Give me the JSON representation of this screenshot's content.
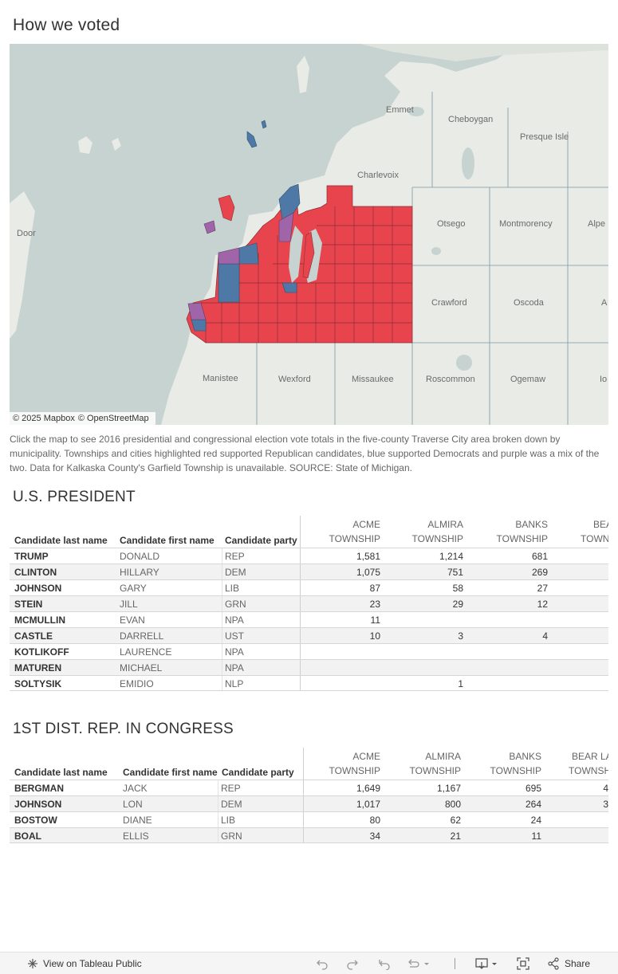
{
  "page": {
    "title": "How we voted",
    "caption": "Click the map to see 2016 presidential and congressional election vote totals in the five-county Traverse City area broken down by municipality. Townships and cities highlighted red supported Republican candidates, blue supported Democrats and purple was a mix of the two. Data for Kalkaska County's Garfield Township is unavailable. SOURCE: State of Michigan."
  },
  "map": {
    "labels": {
      "emmet": "Emmet",
      "cheboygan": "Cheboygan",
      "presque_isle": "Presque Isle",
      "charlevoix": "Charlevoix",
      "door": "Door",
      "otsego": "Otsego",
      "montmorency": "Montmorency",
      "alpena": "Alpe",
      "crawford": "Crawford",
      "oscoda": "Oscoda",
      "alcona": "A",
      "manistee": "Manistee",
      "wexford": "Wexford",
      "missaukee": "Missaukee",
      "roscommon": "Roscommon",
      "ogemaw": "Ogemaw",
      "iosco": "Io"
    },
    "attribution": [
      "© 2025 Mapbox",
      "© OpenStreetMap"
    ],
    "colors": {
      "water": "#c6d3d0",
      "land": "#e8ebe6",
      "republican": "#e8444e",
      "democrat": "#4e79a7",
      "mixed": "#a065a8"
    }
  },
  "president": {
    "title": "U.S. PRESIDENT",
    "headers": {
      "last": "Candidate last name",
      "first": "Candidate first name",
      "party": "Candidate party",
      "cols": [
        [
          "ACME",
          "TOWNSHIP"
        ],
        [
          "ALMIRA",
          "TOWNSHIP"
        ],
        [
          "BANKS",
          "TOWNSHIP"
        ],
        [
          "BEAR",
          "TOWN"
        ]
      ]
    },
    "rows": [
      {
        "last": "TRUMP",
        "first": "DONALD",
        "party": "REP",
        "v": [
          "1,581",
          "1,214",
          "681"
        ]
      },
      {
        "last": "CLINTON",
        "first": "HILLARY",
        "party": "DEM",
        "v": [
          "1,075",
          "751",
          "269"
        ]
      },
      {
        "last": "JOHNSON",
        "first": "GARY",
        "party": "LIB",
        "v": [
          "87",
          "58",
          "27"
        ]
      },
      {
        "last": "STEIN",
        "first": "JILL",
        "party": "GRN",
        "v": [
          "23",
          "29",
          "12"
        ]
      },
      {
        "last": "MCMULLIN",
        "first": "EVAN",
        "party": "NPA",
        "v": [
          "11",
          "",
          ""
        ]
      },
      {
        "last": "CASTLE",
        "first": "DARRELL",
        "party": "UST",
        "v": [
          "10",
          "3",
          "4"
        ]
      },
      {
        "last": "KOTLIKOFF",
        "first": "LAURENCE",
        "party": "NPA",
        "v": [
          "",
          "",
          ""
        ]
      },
      {
        "last": "MATUREN",
        "first": "MICHAEL",
        "party": "NPA",
        "v": [
          "",
          "",
          ""
        ]
      },
      {
        "last": "SOLTYSIK",
        "first": "EMIDIO",
        "party": "NLP",
        "v": [
          "",
          "1",
          ""
        ]
      }
    ]
  },
  "congress": {
    "title": "1ST DIST. REP. IN CONGRESS",
    "headers": {
      "last": "Candidate last name",
      "first": "Candidate first name",
      "party": "Candidate party",
      "cols": [
        [
          "ACME",
          "TOWNSHIP"
        ],
        [
          "ALMIRA",
          "TOWNSHIP"
        ],
        [
          "BANKS",
          "TOWNSHIP"
        ],
        [
          "BEAR LA",
          "TOWNSH"
        ]
      ]
    },
    "rows": [
      {
        "last": "BERGMAN",
        "first": "JACK",
        "party": "REP",
        "v": [
          "1,649",
          "1,167",
          "695",
          "4"
        ]
      },
      {
        "last": "JOHNSON",
        "first": "LON",
        "party": "DEM",
        "v": [
          "1,017",
          "800",
          "264",
          "3"
        ]
      },
      {
        "last": "BOSTOW",
        "first": "DIANE",
        "party": "LIB",
        "v": [
          "80",
          "62",
          "24",
          ""
        ]
      },
      {
        "last": "BOAL",
        "first": "ELLIS",
        "party": "GRN",
        "v": [
          "34",
          "21",
          "11",
          ""
        ]
      }
    ]
  },
  "toolbar": {
    "view_on_tableau": "View on Tableau Public",
    "share": "Share"
  }
}
